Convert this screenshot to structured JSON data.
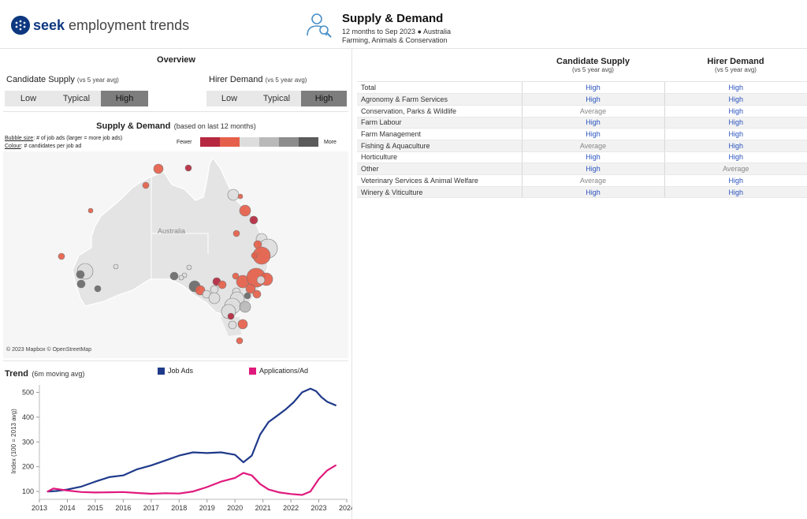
{
  "header": {
    "brand": "seek",
    "brand_sub": "employment trends",
    "title": "Supply & Demand",
    "line1": "12 months to Sep 2023 ● Australia",
    "line2": "Farming, Animals & Conservation"
  },
  "overview": {
    "title": "Overview",
    "supply_label": "Candidate Supply",
    "supply_sub": "(vs 5 year avg)",
    "demand_label": "Hirer Demand",
    "demand_sub": "(vs 5 year avg)",
    "options": [
      "Low",
      "Typical",
      "High"
    ],
    "supply_selected": "High",
    "demand_selected": "High"
  },
  "map": {
    "title": "Supply & Demand",
    "title_sub": "(based on last 12 months)",
    "bubble_note_key": "Bubble size",
    "bubble_note": ": # of job ads (larger = more job ads)",
    "colour_note_key": "Colour",
    "colour_note": ": # candidates per job ad",
    "legend_fewer": "Fewer",
    "legend_more": "More",
    "legend_colors": [
      "#b5283f",
      "#e5604a",
      "#dddddd",
      "#b9b9b9",
      "#8c8c8c",
      "#5a5a5a"
    ],
    "country_label": "Australia",
    "attribution": "© 2023 Mapbox  © OpenStreetMap"
  },
  "trend": {
    "title": "Trend",
    "title_sub": "(6m moving avg)",
    "ylabel": "Index (100 = 2013 avg)"
  },
  "chart_data": {
    "type": "line",
    "x_ticks": [
      "2013",
      "2014",
      "2015",
      "2016",
      "2017",
      "2018",
      "2019",
      "2020",
      "2021",
      "2022",
      "2023",
      "2024"
    ],
    "y_ticks": [
      100,
      200,
      300,
      400,
      500
    ],
    "ylim": [
      75,
      530
    ],
    "xlim": [
      2013,
      2024
    ],
    "series": [
      {
        "name": "Job Ads",
        "color": "#1f3a8a",
        "x": [
          2013.3,
          2013.6,
          2014.0,
          2014.5,
          2015.0,
          2015.5,
          2016.0,
          2016.5,
          2017.0,
          2017.5,
          2018.0,
          2018.5,
          2019.0,
          2019.5,
          2020.0,
          2020.3,
          2020.6,
          2020.9,
          2021.2,
          2021.5,
          2021.8,
          2022.1,
          2022.4,
          2022.7,
          2022.9,
          2023.1,
          2023.3,
          2023.6
        ],
        "y": [
          100,
          102,
          108,
          120,
          140,
          158,
          165,
          190,
          205,
          225,
          245,
          258,
          255,
          258,
          248,
          218,
          245,
          330,
          380,
          405,
          430,
          460,
          500,
          515,
          505,
          480,
          462,
          448
        ]
      },
      {
        "name": "Applications/Ad",
        "color": "#e0197d",
        "x": [
          2013.3,
          2013.5,
          2014.0,
          2014.5,
          2015.0,
          2015.5,
          2016.0,
          2016.5,
          2017.0,
          2017.5,
          2018.0,
          2018.5,
          2019.0,
          2019.5,
          2020.0,
          2020.3,
          2020.6,
          2020.9,
          2021.2,
          2021.6,
          2022.0,
          2022.4,
          2022.7,
          2023.0,
          2023.3,
          2023.6
        ],
        "y": [
          100,
          112,
          104,
          98,
          96,
          97,
          98,
          94,
          91,
          93,
          92,
          100,
          118,
          140,
          155,
          175,
          165,
          130,
          108,
          96,
          90,
          86,
          100,
          150,
          185,
          205
        ]
      }
    ]
  },
  "table": {
    "col1": "Candidate Supply",
    "col1_sub": "(vs 5 year avg)",
    "col2": "Hirer Demand",
    "col2_sub": "(vs 5 year avg)",
    "rows": [
      {
        "name": "Total",
        "supply": "High",
        "demand": "High"
      },
      {
        "name": "Agronomy & Farm Services",
        "supply": "High",
        "demand": "High"
      },
      {
        "name": "Conservation, Parks & Wildlife",
        "supply": "Average",
        "demand": "High"
      },
      {
        "name": "Farm Labour",
        "supply": "High",
        "demand": "High"
      },
      {
        "name": "Farm Management",
        "supply": "High",
        "demand": "High"
      },
      {
        "name": "Fishing & Aquaculture",
        "supply": "Average",
        "demand": "High"
      },
      {
        "name": "Horticulture",
        "supply": "High",
        "demand": "High"
      },
      {
        "name": "Other",
        "supply": "High",
        "demand": "Average"
      },
      {
        "name": "Veterinary Services & Animal Welfare",
        "supply": "Average",
        "demand": "High"
      },
      {
        "name": "Winery & Viticulture",
        "supply": "High",
        "demand": "High"
      }
    ]
  }
}
